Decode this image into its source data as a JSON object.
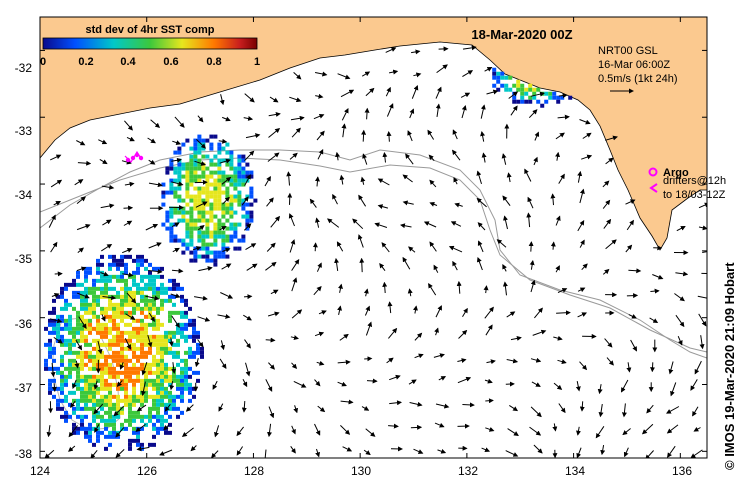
{
  "colorbar": {
    "title": "std dev of 4hr SST comp",
    "ticks": [
      "0",
      "0.2",
      "0.4",
      "0.6",
      "0.8",
      "1"
    ],
    "colors": [
      "#0a0a8c",
      "#0050ff",
      "#00c8c8",
      "#3cc83c",
      "#e6e61e",
      "#ff7800",
      "#c81e1e",
      "#780000"
    ]
  },
  "map_title": "18-Mar-2020 00Z",
  "current_legend": {
    "line1": "NRT00 GSL",
    "line2": "16-Mar 06:00Z",
    "line3": "0.5m/s (1kt 24h)"
  },
  "argo_legend": {
    "label": "Argo",
    "drifters_line1": "drifters@12h",
    "drifters_line2": "to 18/03-12Z",
    "color": "#ff00ff"
  },
  "credit": "© IMOS 19-Mar-2020 21:09 Hobart",
  "axes": {
    "x_ticks": [
      "124",
      "126",
      "128",
      "130",
      "132",
      "134",
      "136"
    ],
    "y_ticks": [
      "-32",
      "-33",
      "-34",
      "-35",
      "-36",
      "-37",
      "-38"
    ]
  },
  "chart_data": {
    "type": "map",
    "title": "18-Mar-2020 00Z",
    "xlim": [
      124,
      136.5
    ],
    "ylim": [
      -38.1,
      -31.5
    ],
    "x_ticks": [
      124,
      126,
      128,
      130,
      132,
      134,
      136
    ],
    "y_ticks": [
      -32,
      -33,
      -34,
      -35,
      -36,
      -37,
      -38
    ],
    "land_color": "#fbc98f",
    "coastline": [
      [
        124.0,
        -33.35
      ],
      [
        124.4,
        -33.0
      ],
      [
        124.9,
        -32.75
      ],
      [
        125.5,
        -32.55
      ],
      [
        126.2,
        -32.45
      ],
      [
        127.0,
        -32.3
      ],
      [
        128.0,
        -32.05
      ],
      [
        128.9,
        -31.8
      ],
      [
        129.7,
        -31.68
      ],
      [
        130.4,
        -31.6
      ],
      [
        130.9,
        -31.55
      ],
      [
        131.3,
        -31.62
      ],
      [
        131.8,
        -31.9
      ],
      [
        132.3,
        -32.0
      ],
      [
        132.8,
        -32.1
      ],
      [
        133.2,
        -32.2
      ],
      [
        133.6,
        -32.35
      ],
      [
        133.85,
        -32.55
      ],
      [
        134.1,
        -32.85
      ],
      [
        134.25,
        -33.2
      ],
      [
        134.7,
        -33.45
      ],
      [
        135.1,
        -33.8
      ],
      [
        135.35,
        -34.3
      ],
      [
        135.5,
        -34.6
      ],
      [
        135.75,
        -34.95
      ],
      [
        135.95,
        -34.6
      ],
      [
        136.2,
        -34.2
      ],
      [
        136.5,
        -34.0
      ]
    ],
    "current_field_sample": [
      {
        "lon": 125.0,
        "lat": -33.8,
        "u": 0.1,
        "v": -0.06
      },
      {
        "lon": 127.5,
        "lat": -34.6,
        "u": 0.14,
        "v": 0.03
      },
      {
        "lon": 129.5,
        "lat": -35.9,
        "u": 0.05,
        "v": -0.12
      },
      {
        "lon": 131.0,
        "lat": -36.4,
        "u": 0.16,
        "v": -0.04
      },
      {
        "lon": 133.5,
        "lat": -37.2,
        "u": -0.08,
        "v": 0.1
      },
      {
        "lon": 135.0,
        "lat": -35.8,
        "u": -0.1,
        "v": -0.05
      }
    ],
    "sst_patches": [
      {
        "region": "west",
        "lon": [
          124.0,
          127.0
        ],
        "lat": [
          -38.0,
          -35.0
        ],
        "max_std": 0.7
      },
      {
        "region": "mid",
        "lon": [
          126.2,
          128.0
        ],
        "lat": [
          -35.2,
          -33.2
        ],
        "max_std": 0.6
      },
      {
        "region": "east",
        "lon": [
          132.4,
          134.2
        ],
        "lat": [
          -32.8,
          -31.9
        ],
        "max_std": 0.6
      }
    ],
    "argo_floats": [
      {
        "lon": 125.75,
        "lat": -33.45
      },
      {
        "lon": 125.9,
        "lat": -33.4
      }
    ]
  }
}
